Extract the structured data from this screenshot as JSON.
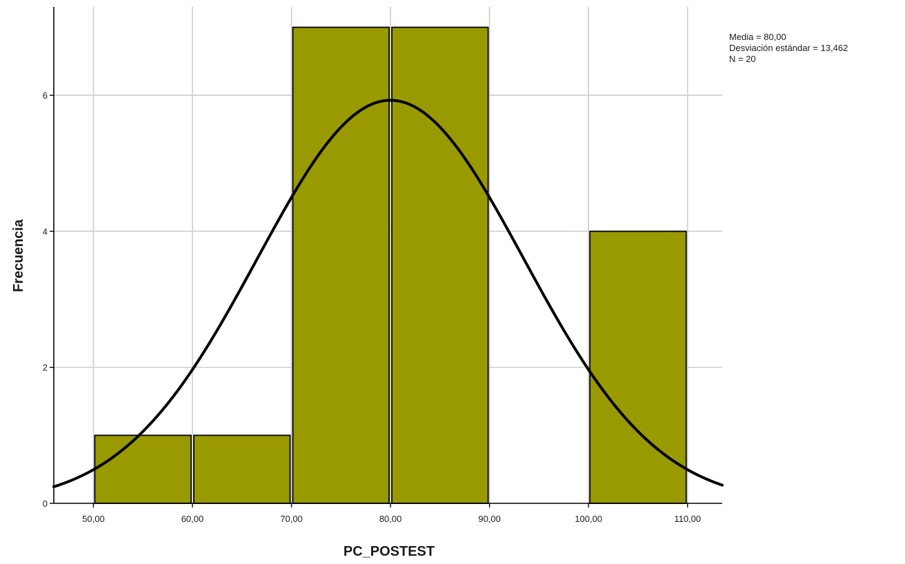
{
  "chart_data": {
    "type": "bar",
    "subtype": "histogram",
    "xlabel": "PC_POSTEST",
    "ylabel": "Frecuencia",
    "xlim": [
      46,
      113.5
    ],
    "ylim": [
      0,
      7.3
    ],
    "bins": [
      {
        "start": 50,
        "end": 60,
        "count": 1
      },
      {
        "start": 60,
        "end": 70,
        "count": 1
      },
      {
        "start": 70,
        "end": 80,
        "count": 7
      },
      {
        "start": 80,
        "end": 90,
        "count": 7
      },
      {
        "start": 90,
        "end": 100,
        "count": 0
      },
      {
        "start": 100,
        "end": 110,
        "count": 4
      }
    ],
    "x_ticks": [
      {
        "value": 50,
        "label": "50,00"
      },
      {
        "value": 60,
        "label": "60,00"
      },
      {
        "value": 70,
        "label": "70,00"
      },
      {
        "value": 80,
        "label": "80,00"
      },
      {
        "value": 90,
        "label": "90,00"
      },
      {
        "value": 100,
        "label": "100,00"
      },
      {
        "value": 110,
        "label": "110,00"
      }
    ],
    "y_ticks": [
      {
        "value": 0,
        "label": "0"
      },
      {
        "value": 2,
        "label": "2"
      },
      {
        "value": 4,
        "label": "4"
      },
      {
        "value": 6,
        "label": "6"
      }
    ],
    "normal_curve": {
      "mean": 80.0,
      "sd": 13.462,
      "n": 20,
      "bin_width": 10
    },
    "stats": {
      "mean_text": "Media = 80,00",
      "sd_text": "Desviación estándar = 13,462",
      "n_text": "N = 20"
    },
    "grid": true,
    "colors": {
      "bar_fill": "#999900",
      "bar_stroke": "#000000",
      "grid": "#cccccc",
      "curve": "#000000"
    }
  }
}
